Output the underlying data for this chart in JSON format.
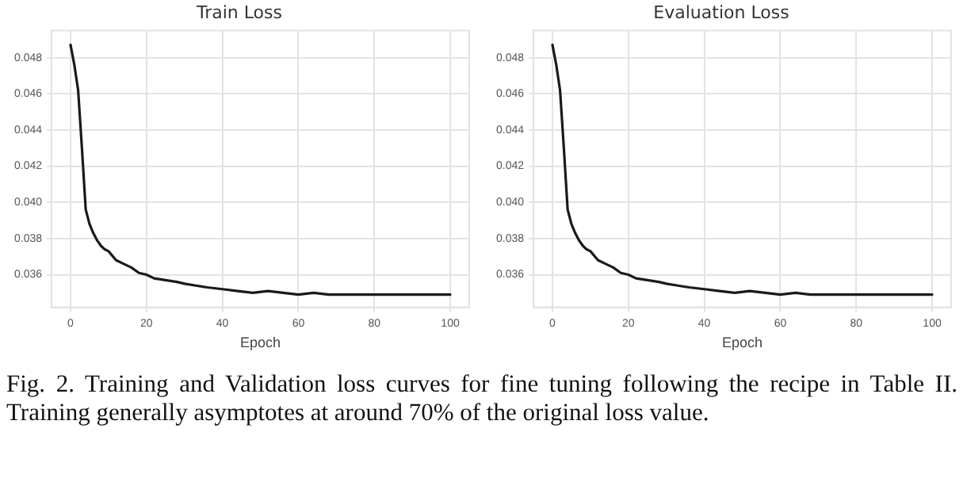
{
  "chart_data": [
    {
      "type": "line",
      "title": "Train Loss",
      "xlabel": "Epoch",
      "x": [
        0,
        1,
        2,
        3,
        4,
        5,
        6,
        7,
        8,
        9,
        10,
        12,
        14,
        16,
        18,
        20,
        22,
        25,
        28,
        30,
        33,
        36,
        40,
        44,
        48,
        52,
        56,
        60,
        64,
        68,
        75,
        80,
        90,
        100
      ],
      "series": [
        {
          "color": "#1a1a1a",
          "values": [
            0.0487,
            0.0476,
            0.0462,
            0.043,
            0.0396,
            0.0388,
            0.0383,
            0.0379,
            0.0376,
            0.0374,
            0.0373,
            0.0368,
            0.0366,
            0.0364,
            0.0361,
            0.036,
            0.0358,
            0.0357,
            0.0356,
            0.0355,
            0.0354,
            0.0353,
            0.0352,
            0.0351,
            0.035,
            0.0351,
            0.035,
            0.0349,
            0.035,
            0.0349,
            0.0349,
            0.0349,
            0.0349,
            0.0349
          ]
        }
      ],
      "xlim": [
        -5,
        105
      ],
      "xticks": [
        0,
        20,
        40,
        60,
        80,
        100
      ],
      "ylim": [
        0.0342,
        0.0495
      ],
      "yticks": [
        {
          "value": 0.036,
          "label": "0.036"
        },
        {
          "value": 0.038,
          "label": "0.038"
        },
        {
          "value": 0.04,
          "label": "0.040"
        },
        {
          "value": 0.042,
          "label": "0.042"
        },
        {
          "value": 0.044,
          "label": "0.044"
        },
        {
          "value": 0.046,
          "label": "0.046"
        },
        {
          "value": 0.048,
          "label": "0.048"
        }
      ],
      "grid": true,
      "legend": false,
      "marker": "none",
      "line_style": "solid",
      "annotations": [
        "Fig. 2.  Training and Validation loss curves for fine tuning following the recipe in Table II. Training generally asymptotes at around 70% of the original loss value."
      ]
    },
    {
      "type": "line",
      "title": "Evaluation Loss",
      "xlabel": "Epoch",
      "x": [
        0,
        1,
        2,
        3,
        4,
        5,
        6,
        7,
        8,
        9,
        10,
        12,
        14,
        16,
        18,
        20,
        22,
        25,
        28,
        30,
        33,
        36,
        40,
        44,
        48,
        52,
        56,
        60,
        64,
        68,
        75,
        80,
        90,
        100
      ],
      "series": [
        {
          "color": "#1a1a1a",
          "values": [
            0.0487,
            0.0476,
            0.0462,
            0.043,
            0.0396,
            0.0388,
            0.0383,
            0.0379,
            0.0376,
            0.0374,
            0.0373,
            0.0368,
            0.0366,
            0.0364,
            0.0361,
            0.036,
            0.0358,
            0.0357,
            0.0356,
            0.0355,
            0.0354,
            0.0353,
            0.0352,
            0.0351,
            0.035,
            0.0351,
            0.035,
            0.0349,
            0.035,
            0.0349,
            0.0349,
            0.0349,
            0.0349,
            0.0349
          ]
        }
      ],
      "xlim": [
        -5,
        105
      ],
      "xticks": [
        0,
        20,
        40,
        60,
        80,
        100
      ],
      "ylim": [
        0.0342,
        0.0495
      ],
      "yticks": [
        {
          "value": 0.036,
          "label": "0.036"
        },
        {
          "value": 0.038,
          "label": "0.038"
        },
        {
          "value": 0.04,
          "label": "0.040"
        },
        {
          "value": 0.042,
          "label": "0.042"
        },
        {
          "value": 0.044,
          "label": "0.044"
        },
        {
          "value": 0.046,
          "label": "0.046"
        },
        {
          "value": 0.048,
          "label": "0.048"
        }
      ],
      "grid": true,
      "legend": false,
      "marker": "none",
      "line_style": "solid"
    }
  ]
}
